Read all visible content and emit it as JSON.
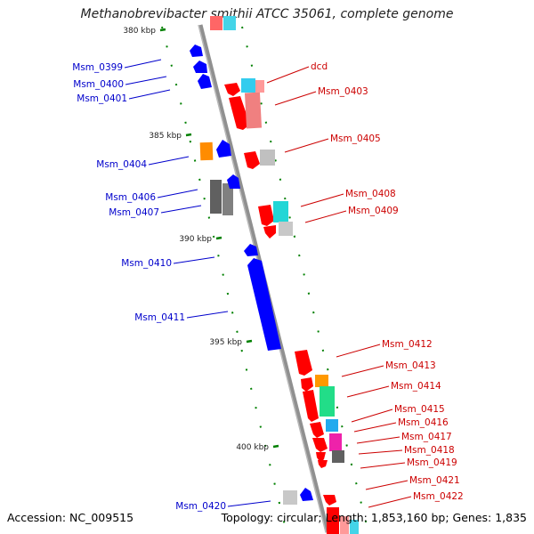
{
  "title": "Methanobrevibacter smithii ATCC 35061, complete genome",
  "accession": "Accession: NC_009515",
  "summary": "Topology: circular; Length: 1,853,160 bp; Genes: 1,835",
  "ticks": [
    {
      "label": "380 kbp"
    },
    {
      "label": "385 kbp"
    },
    {
      "label": "390 kbp"
    },
    {
      "label": "395 kbp"
    },
    {
      "label": "400 kbp"
    }
  ],
  "left_labels": [
    "Msm_0399",
    "Msm_0400",
    "Msm_0401",
    "Msm_0404",
    "Msm_0406",
    "Msm_0407",
    "Msm_0410",
    "Msm_0411",
    "Msm_0420"
  ],
  "right_labels": [
    "dcd",
    "Msm_0403",
    "Msm_0405",
    "Msm_0408",
    "Msm_0409",
    "Msm_0412",
    "Msm_0413",
    "Msm_0414",
    "Msm_0415",
    "Msm_0416",
    "Msm_0417",
    "Msm_0418",
    "Msm_0419",
    "Msm_0421",
    "Msm_0422"
  ],
  "colors": {
    "reverse_strand": "#0000ff",
    "forward_strand": "#ff0000",
    "label_left": "#0000cc",
    "label_right": "#cc0000",
    "tick": "#008000",
    "backbone": "#909090"
  }
}
